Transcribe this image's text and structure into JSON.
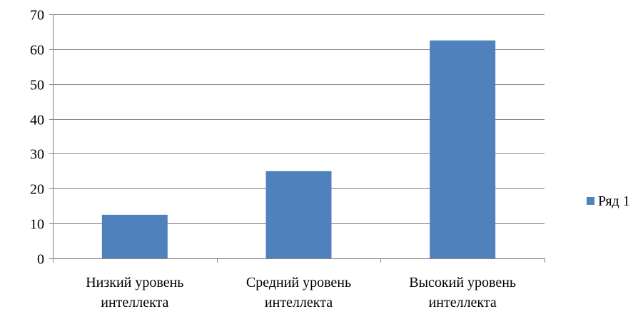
{
  "chart_data": {
    "type": "bar",
    "categories": [
      [
        "Низкий уровень",
        "интеллекта"
      ],
      [
        "Средний уровень",
        "интеллекта"
      ],
      [
        "Высокий уровень",
        "интеллекта"
      ]
    ],
    "series": [
      {
        "name": "Ряд 1",
        "values": [
          12.5,
          25,
          62.5
        ],
        "color": "#4f81bd"
      }
    ],
    "ylim": [
      0,
      70
    ],
    "yticks": [
      0,
      10,
      20,
      30,
      40,
      50,
      60,
      70
    ],
    "grid": true,
    "gridColor": "#868686",
    "legend_position": "right"
  }
}
